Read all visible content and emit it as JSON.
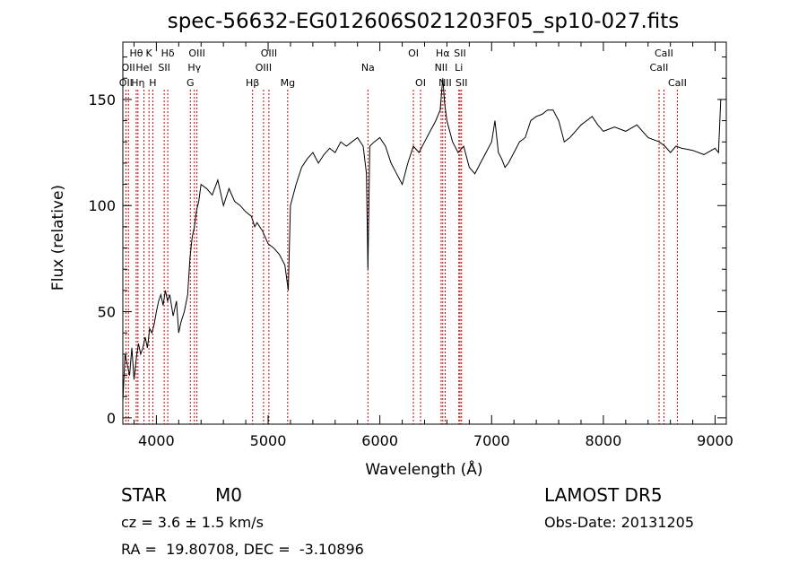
{
  "chart_data": {
    "type": "line",
    "title": "spec-56632-EG012606S021203F05_sp10-027.fits",
    "xlabel": "Wavelength (Å)",
    "ylabel": "Flux (relative)",
    "xlim": [
      3700,
      9100
    ],
    "ylim": [
      -3,
      177
    ],
    "xticks": [
      4000,
      5000,
      6000,
      7000,
      8000,
      9000
    ],
    "yticks": [
      0,
      50,
      100,
      150
    ],
    "grid": false,
    "line_color": "#000000",
    "marker_color": "#cc0000",
    "series": [
      {
        "x": [
          3700,
          3720,
          3740,
          3760,
          3780,
          3800,
          3820,
          3840,
          3860,
          3880,
          3900,
          3920,
          3940,
          3960,
          3980,
          4000,
          4020,
          4040,
          4060,
          4080,
          4100,
          4120,
          4150,
          4180,
          4200,
          4220,
          4250,
          4280,
          4300,
          4320,
          4340,
          4360,
          4380,
          4400,
          4450,
          4500,
          4550,
          4600,
          4650,
          4700,
          4750,
          4800,
          4850,
          4880,
          4900,
          4950,
          5000,
          5050,
          5100,
          5150,
          5180,
          5200,
          5250,
          5300,
          5350,
          5400,
          5450,
          5500,
          5550,
          5600,
          5650,
          5700,
          5750,
          5800,
          5850,
          5880,
          5893,
          5910,
          5950,
          6000,
          6050,
          6100,
          6150,
          6200,
          6250,
          6300,
          6350,
          6400,
          6450,
          6500,
          6540,
          6563,
          6580,
          6600,
          6650,
          6700,
          6750,
          6800,
          6850,
          6900,
          6950,
          7000,
          7030,
          7060,
          7090,
          7120,
          7150,
          7200,
          7250,
          7300,
          7350,
          7400,
          7450,
          7500,
          7550,
          7600,
          7650,
          7700,
          7750,
          7800,
          7850,
          7900,
          7950,
          8000,
          8100,
          8200,
          8300,
          8400,
          8500,
          8550,
          8600,
          8650,
          8700,
          8800,
          8900,
          9000,
          9030,
          9050
        ],
        "y": [
          8,
          30,
          25,
          20,
          33,
          18,
          28,
          35,
          30,
          33,
          38,
          33,
          42,
          40,
          44,
          50,
          55,
          58,
          53,
          60,
          55,
          58,
          48,
          55,
          40,
          45,
          50,
          58,
          75,
          85,
          90,
          98,
          102,
          110,
          108,
          105,
          112,
          100,
          108,
          102,
          100,
          97,
          95,
          90,
          92,
          88,
          82,
          80,
          77,
          72,
          60,
          100,
          110,
          118,
          122,
          125,
          120,
          124,
          127,
          125,
          130,
          128,
          130,
          132,
          128,
          115,
          70,
          128,
          130,
          132,
          128,
          120,
          115,
          110,
          120,
          128,
          125,
          130,
          135,
          140,
          145,
          160,
          148,
          140,
          130,
          125,
          128,
          118,
          115,
          120,
          125,
          130,
          140,
          125,
          122,
          118,
          120,
          125,
          130,
          132,
          140,
          142,
          143,
          145,
          145,
          140,
          130,
          132,
          135,
          138,
          140,
          142,
          138,
          135,
          137,
          135,
          138,
          132,
          130,
          128,
          125,
          128,
          127,
          126,
          124,
          127,
          125,
          150
        ]
      }
    ],
    "line_markers": [
      {
        "wl": 3727,
        "label": "OII",
        "row": 3
      },
      {
        "wl": 3750,
        "label": "OII",
        "row": 2
      },
      {
        "wl": 3820,
        "label": "Hθ",
        "row": 1
      },
      {
        "wl": 3835,
        "label": "Hη",
        "row": 3
      },
      {
        "wl": 3889,
        "label": "HeI",
        "row": 2
      },
      {
        "wl": 3934,
        "label": "K",
        "row": 1
      },
      {
        "wl": 3968,
        "label": "H",
        "row": 3
      },
      {
        "wl": 4070,
        "label": "SII",
        "row": 2
      },
      {
        "wl": 4102,
        "label": "Hδ",
        "row": 1
      },
      {
        "wl": 4304,
        "label": "G",
        "row": 3
      },
      {
        "wl": 4340,
        "label": "Hγ",
        "row": 2
      },
      {
        "wl": 4363,
        "label": "OIII",
        "row": 1
      },
      {
        "wl": 4861,
        "label": "Hβ",
        "row": 3
      },
      {
        "wl": 4959,
        "label": "OIII",
        "row": 2
      },
      {
        "wl": 5007,
        "label": "OIII",
        "row": 1
      },
      {
        "wl": 5175,
        "label": "Mg",
        "row": 3
      },
      {
        "wl": 5893,
        "label": "Na",
        "row": 2
      },
      {
        "wl": 6300,
        "label": "OI",
        "row": 1
      },
      {
        "wl": 6364,
        "label": "OI",
        "row": 3
      },
      {
        "wl": 6548,
        "label": "NII",
        "row": 2
      },
      {
        "wl": 6563,
        "label": "Hα",
        "row": 1
      },
      {
        "wl": 6584,
        "label": "NII",
        "row": 3
      },
      {
        "wl": 6707,
        "label": "Li",
        "row": 2
      },
      {
        "wl": 6717,
        "label": "SII",
        "row": 1
      },
      {
        "wl": 6731,
        "label": "SII",
        "row": 3
      },
      {
        "wl": 8498,
        "label": "CaII",
        "row": 2
      },
      {
        "wl": 8542,
        "label": "CaII",
        "row": 1
      },
      {
        "wl": 8662,
        "label": "CaII",
        "row": 3
      }
    ]
  },
  "footer": {
    "object_class": "STAR",
    "subclass": "M0",
    "survey": "LAMOST DR5",
    "cz": "cz = 3.6 ± 1.5 km/s",
    "obs_date": "Obs-Date: 20131205",
    "coords": "RA =  19.80708, DEC =  -3.10896"
  }
}
